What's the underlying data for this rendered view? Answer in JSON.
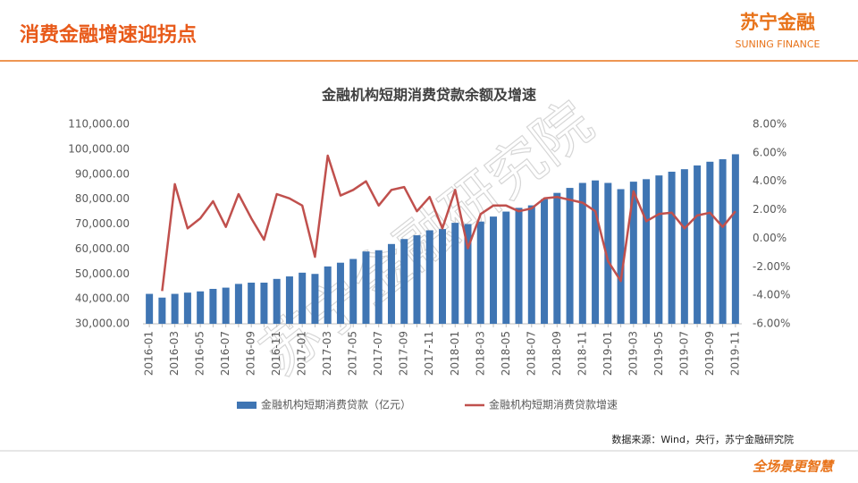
{
  "header": {
    "title": "消费金融增速迎拐点",
    "logo": "苏宁金融",
    "logo_sub": "SUNING FINANCE"
  },
  "watermark": "苏宁金融研究院",
  "source": "数据来源：Wind，央行，苏宁金融研究院",
  "footer": "全场景更智慧",
  "chart_data": {
    "type": "bar_line",
    "title": "金融机构短期消费贷款余额及增速",
    "categories": [
      "2016-01",
      null,
      "2016-03",
      null,
      "2016-05",
      null,
      "2016-07",
      null,
      "2016-09",
      null,
      "2016-11",
      null,
      "2017-01",
      null,
      "2017-03",
      null,
      "2017-05",
      null,
      "2017-07",
      null,
      "2017-09",
      null,
      "2017-11",
      null,
      "2018-01",
      null,
      "2018-03",
      null,
      "2018-05",
      null,
      "2018-07",
      null,
      "2018-09",
      null,
      "2018-11",
      null,
      "2019-01",
      null,
      "2019-03",
      null,
      "2019-05",
      null,
      "2019-07",
      null,
      "2019-09",
      null,
      "2019-11"
    ],
    "series": [
      {
        "name": "金融机构短期消费贷款（亿元）",
        "type": "bar",
        "color": "#3f75b3",
        "axis": "y",
        "values": [
          42000,
          40500,
          42000,
          42500,
          43000,
          44000,
          44500,
          46000,
          46500,
          46500,
          48000,
          49000,
          50500,
          50000,
          53000,
          54500,
          56000,
          59000,
          59500,
          62000,
          64000,
          65500,
          67500,
          68000,
          70500,
          70000,
          71000,
          73000,
          75000,
          76500,
          77500,
          80000,
          82500,
          84500,
          86500,
          87500,
          86500,
          84000,
          87000,
          88000,
          89500,
          91000,
          92000,
          93500,
          95000,
          96000,
          98000
        ]
      },
      {
        "name": "金融机构短期消费贷款增速",
        "type": "line",
        "color": "#c0504d",
        "axis": "y2",
        "values": [
          null,
          -3.7,
          3.8,
          0.7,
          1.4,
          2.6,
          0.8,
          3.1,
          1.4,
          -0.1,
          3.1,
          2.8,
          2.3,
          -1.3,
          5.8,
          3.0,
          3.4,
          4.0,
          2.3,
          3.4,
          3.6,
          1.9,
          2.9,
          0.7,
          3.4,
          -0.7,
          1.7,
          2.3,
          2.3,
          1.9,
          2.1,
          2.8,
          2.9,
          2.7,
          2.5,
          1.9,
          -1.6,
          -3.0,
          3.3,
          1.2,
          1.7,
          1.8,
          0.7,
          1.6,
          1.8,
          0.8,
          1.9
        ]
      }
    ],
    "ylim": [
      30000,
      110000
    ],
    "yticks": [
      {
        "value": 30000,
        "label": "30,000.00"
      },
      {
        "value": 40000,
        "label": "40,000.00"
      },
      {
        "value": 50000,
        "label": "50,000.00"
      },
      {
        "value": 60000,
        "label": "60,000.00"
      },
      {
        "value": 70000,
        "label": "70,000.00"
      },
      {
        "value": 80000,
        "label": "80,000.00"
      },
      {
        "value": 90000,
        "label": "90,000.00"
      },
      {
        "value": 100000,
        "label": "100,000.00"
      },
      {
        "value": 110000,
        "label": "110,000.00"
      }
    ],
    "y2lim": [
      -6,
      8
    ],
    "y2ticks": [
      {
        "value": -6,
        "label": "-6.00%"
      },
      {
        "value": -4,
        "label": "-4.00%"
      },
      {
        "value": -2,
        "label": "-2.00%"
      },
      {
        "value": 0,
        "label": "0.00%"
      },
      {
        "value": 2,
        "label": "2.00%"
      },
      {
        "value": 4,
        "label": "4.00%"
      },
      {
        "value": 6,
        "label": "6.00%"
      },
      {
        "value": 8,
        "label": "8.00%"
      }
    ],
    "legend": "bottom"
  }
}
